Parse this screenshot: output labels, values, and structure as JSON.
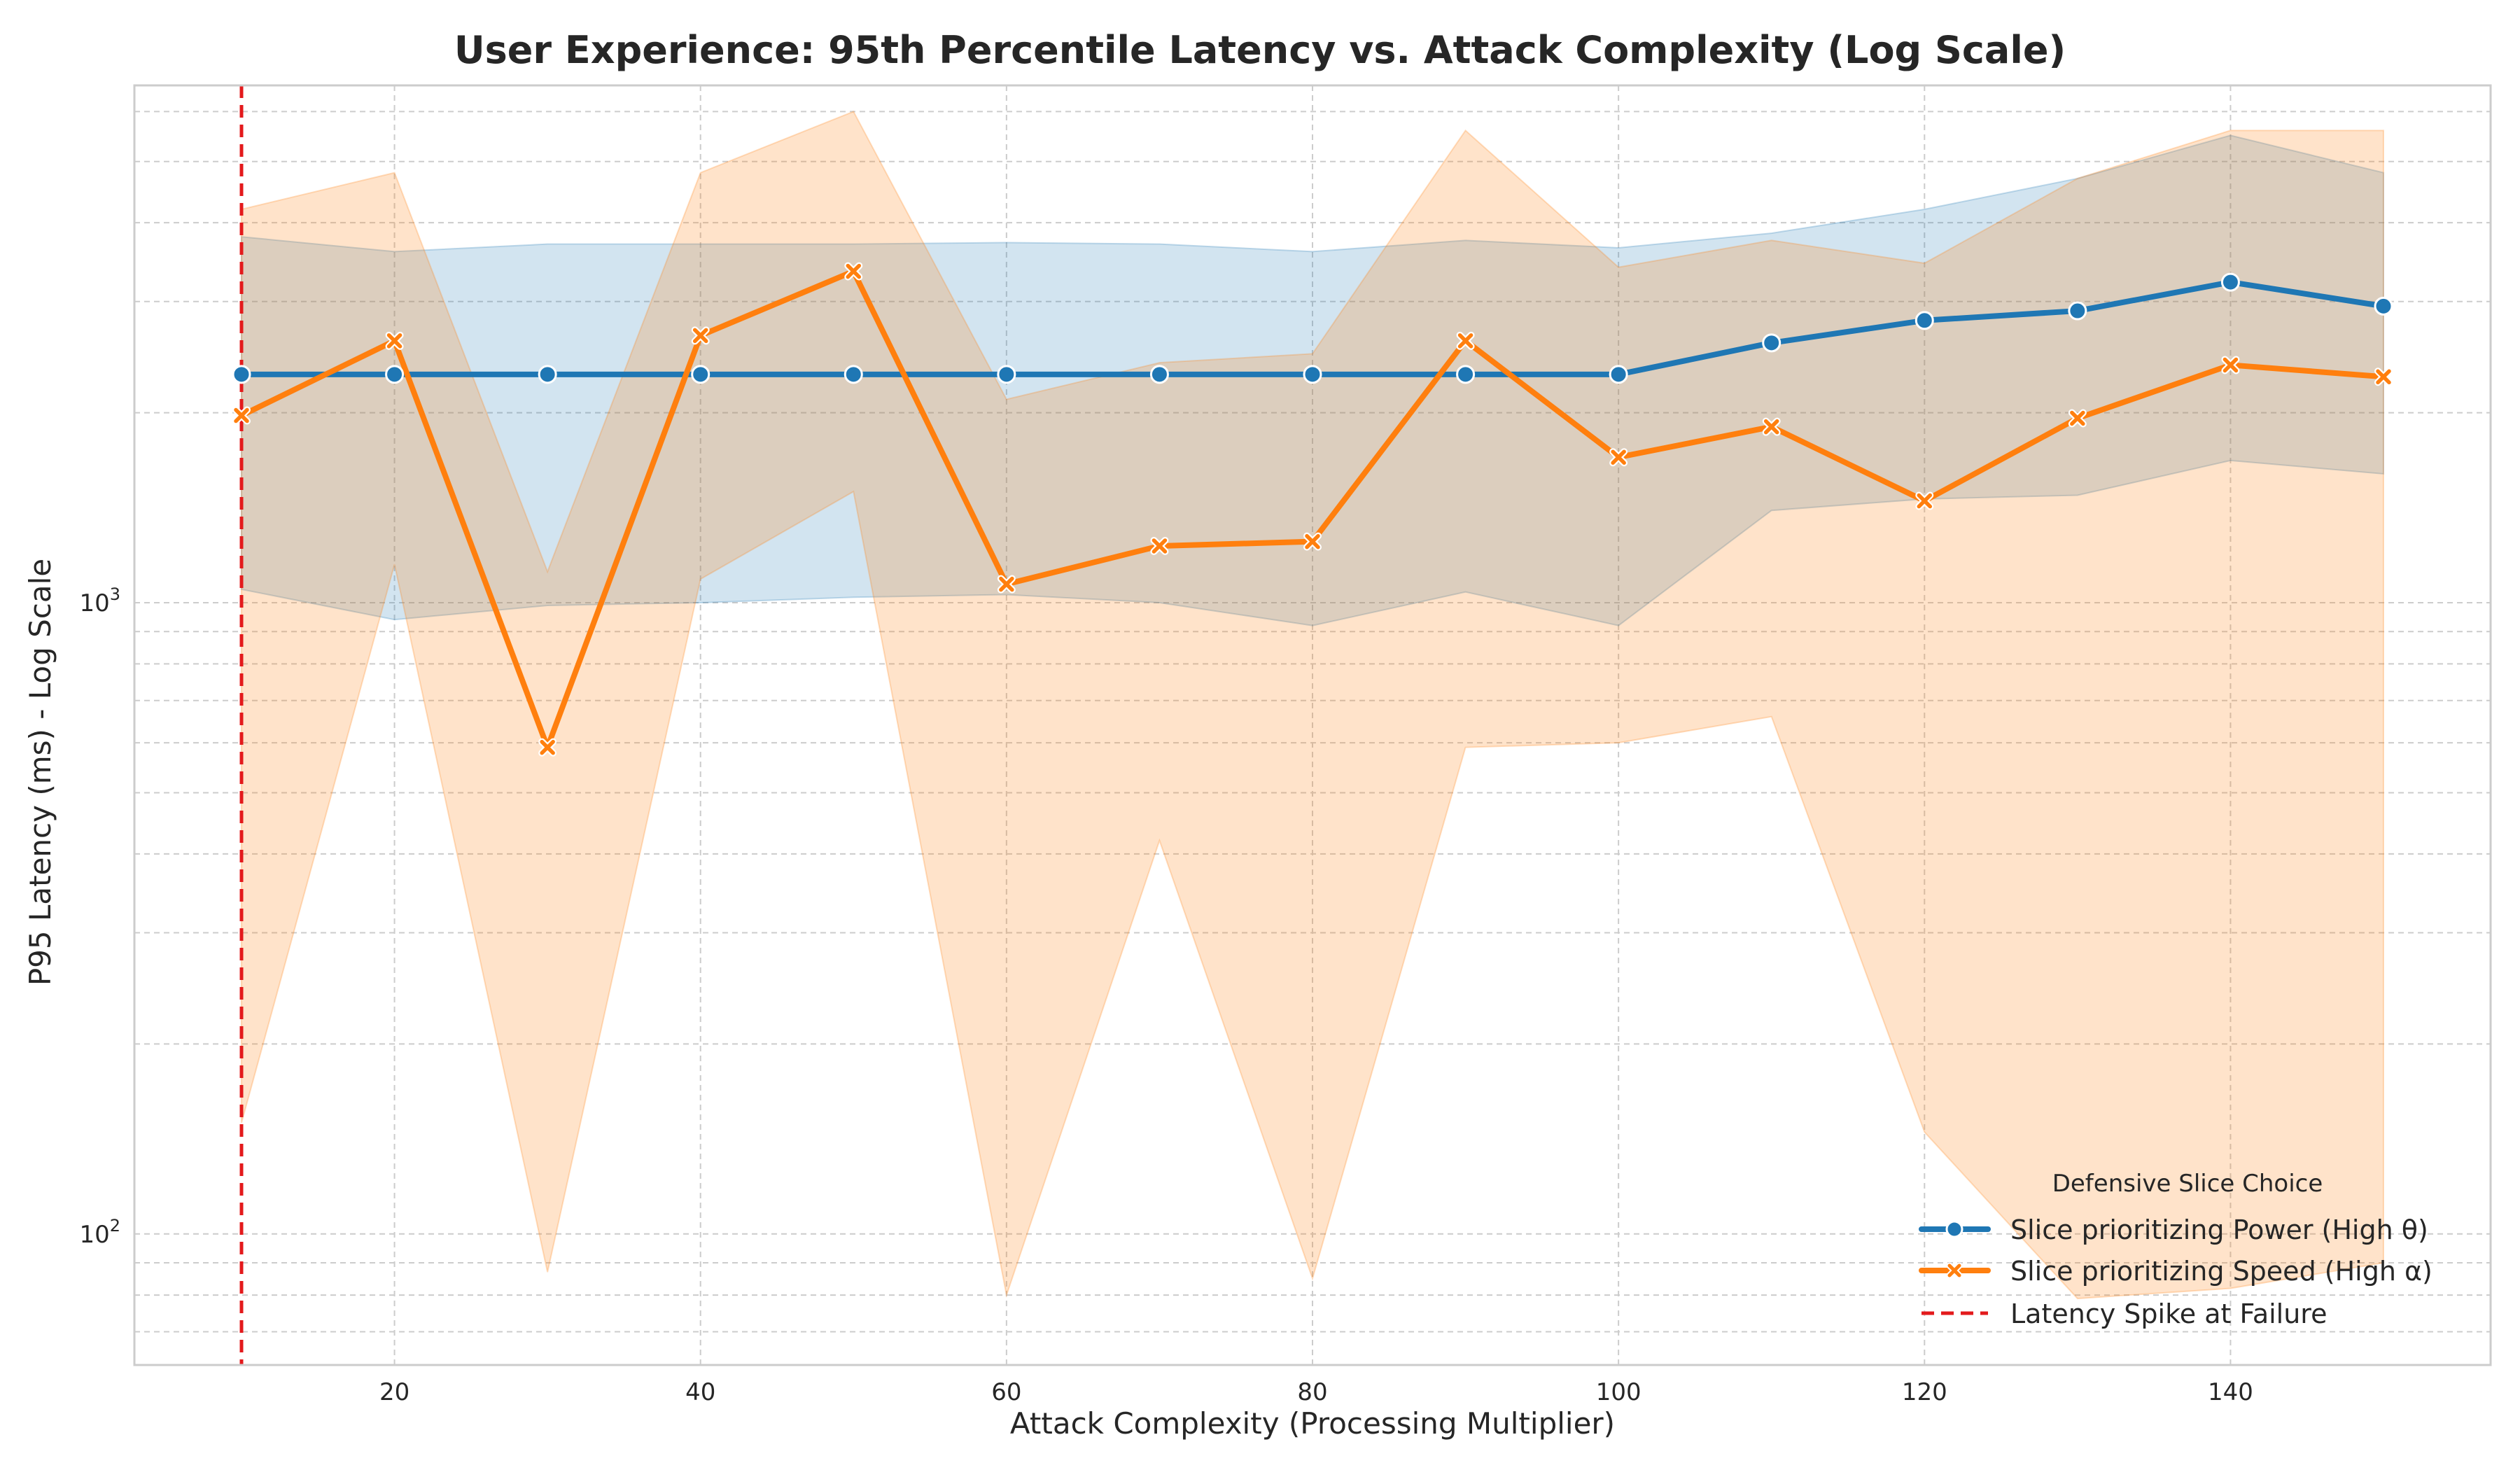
{
  "chart_data": {
    "type": "line",
    "title": "User Experience: 95th Percentile Latency vs. Attack Complexity (Log Scale)",
    "xlabel": "Attack Complexity (Processing Multiplier)",
    "ylabel": "P95 Latency (ms) - Log Scale",
    "xlim": [
      3,
      157
    ],
    "ylim": [
      62,
      6600
    ],
    "y_scale": "log",
    "grid": true,
    "x_ticks": [
      20,
      40,
      60,
      80,
      100,
      120,
      140
    ],
    "x_tick_labels": [
      "20",
      "40",
      "60",
      "80",
      "100",
      "120",
      "140"
    ],
    "y_tick_labels": {
      "base": "10",
      "exps": [
        "2",
        "3"
      ]
    },
    "x": [
      10,
      20,
      30,
      40,
      50,
      60,
      70,
      80,
      90,
      100,
      110,
      120,
      130,
      140,
      150
    ],
    "series": [
      {
        "name": "Slice prioritizing Power (High θ)",
        "color": "#1f77b4",
        "marker": "circle",
        "values": [
          2300,
          2300,
          2300,
          2300,
          2300,
          2300,
          2300,
          2300,
          2300,
          2300,
          2580,
          2800,
          2900,
          3220,
          2950
        ],
        "ci_low": [
          1050,
          940,
          990,
          1000,
          1020,
          1030,
          1000,
          920,
          1040,
          920,
          1400,
          1460,
          1480,
          1680,
          1600
        ],
        "ci_high": [
          3800,
          3600,
          3700,
          3700,
          3700,
          3720,
          3700,
          3600,
          3750,
          3650,
          3850,
          4200,
          4700,
          5500,
          4800
        ]
      },
      {
        "name": "Slice prioritizing Speed (High α)",
        "color": "#ff7f0e",
        "marker": "x",
        "values": [
          1980,
          2600,
          590,
          2650,
          3350,
          1070,
          1230,
          1250,
          2600,
          1700,
          1900,
          1450,
          1960,
          2380,
          2280
        ],
        "ci_low": [
          150,
          1150,
          87,
          1090,
          1500,
          80,
          420,
          85,
          590,
          600,
          660,
          145,
          79,
          82,
          90
        ],
        "ci_high": [
          4200,
          4800,
          1120,
          4800,
          6000,
          2100,
          2400,
          2480,
          5600,
          3400,
          3750,
          3450,
          4700,
          5600,
          5600
        ]
      }
    ],
    "reference_line": {
      "x": 10,
      "label": "Latency Spike at Failure",
      "color": "#e31a1c"
    },
    "legend": {
      "title": "Defensive Slice Choice",
      "placement": "lower-right"
    }
  }
}
